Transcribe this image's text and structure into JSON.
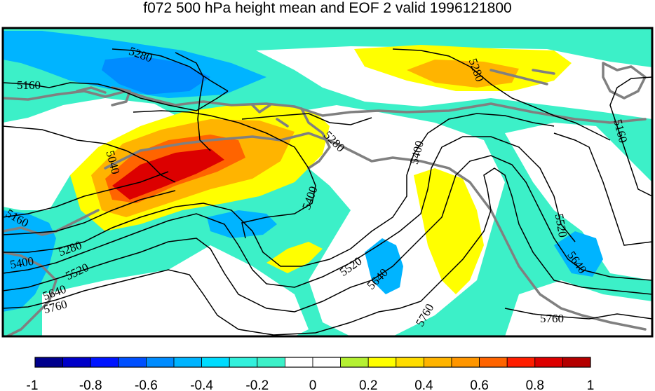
{
  "title": "f072 500 hPa height mean and EOF 2 valid 1996121800",
  "contour_labels": [
    "5280",
    "5160",
    "5040",
    "5280",
    "5400",
    "5280",
    "5400",
    "5160",
    "5160",
    "5280",
    "5400",
    "5520",
    "5640",
    "5760",
    "5520",
    "5640",
    "5760",
    "5520",
    "5640",
    "5760"
  ],
  "colorbar": {
    "ticks": [
      "-1",
      "-0.8",
      "-0.6",
      "-0.4",
      "-0.2",
      "0",
      "0.2",
      "0.4",
      "0.6",
      "0.8",
      "1"
    ],
    "colors": [
      "#00008c",
      "#0000c8",
      "#0014ff",
      "#0050ff",
      "#008cff",
      "#00b4ff",
      "#00dcff",
      "#32f0dc",
      "#3cf0c8",
      "#ffffff",
      "#ffffff",
      "#b4f032",
      "#ffff00",
      "#ffdc00",
      "#ffb400",
      "#ff9600",
      "#ff6400",
      "#ff1e00",
      "#dc0000",
      "#b40000"
    ]
  },
  "colors": {
    "teal": "#3cf0c8",
    "lightblue": "#00b4ff",
    "blue": "#008cff",
    "yellow": "#ffff00",
    "orange": "#ffb400",
    "red": "#ff6400",
    "darkred": "#dc0000",
    "coast": "#808080"
  }
}
